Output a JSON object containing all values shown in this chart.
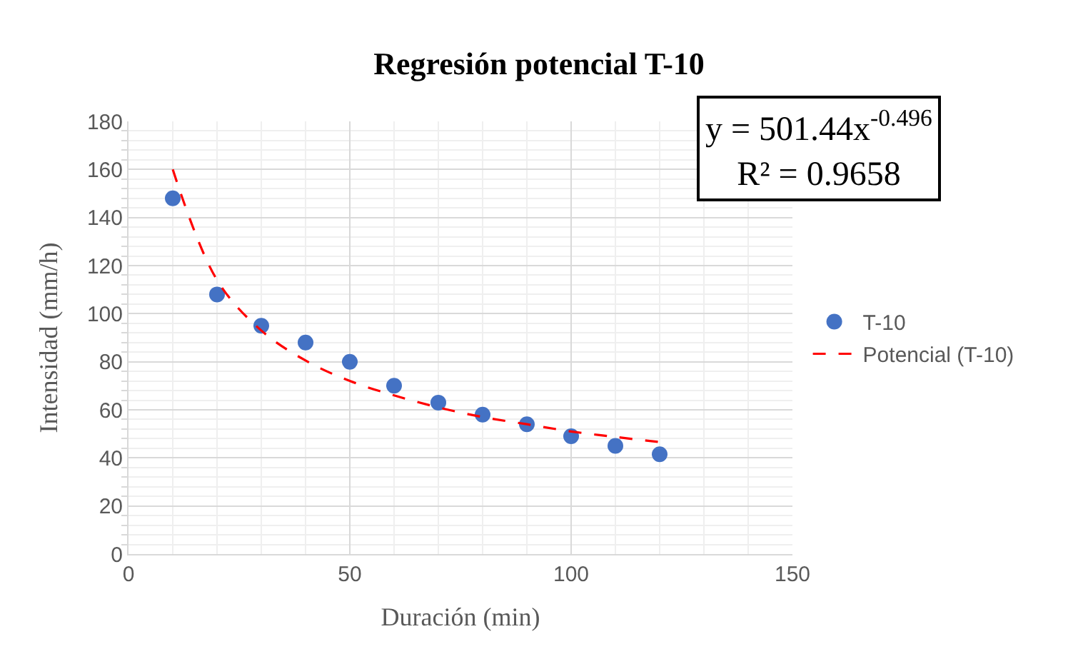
{
  "chart_data": {
    "type": "scatter",
    "title": "Regresión potencial T-10",
    "xlabel": "Duración (min)",
    "ylabel": "Intensidad (mm/h)",
    "x": [
      10,
      20,
      30,
      40,
      50,
      60,
      70,
      80,
      90,
      100,
      110,
      120
    ],
    "series": [
      {
        "name": "T-10",
        "color": "#4472c4",
        "marker": "circle",
        "values": [
          148,
          108,
          95,
          88,
          80,
          70,
          63,
          58,
          54,
          49,
          45,
          41.5
        ]
      },
      {
        "name": "Potencial (T-10)",
        "type": "line",
        "color": "#ff0000",
        "line_style": "dashed",
        "marker": "none",
        "values": [
          160,
          114,
          93,
          80.5,
          72,
          66,
          61,
          57,
          54,
          51,
          48.7,
          46.6
        ]
      }
    ],
    "annotations": [
      "y = 501.44x$^{-0.496}$\nR² = 0.9658"
    ],
    "xlim": [
      0,
      150
    ],
    "xticks": [
      0,
      50,
      100,
      150
    ],
    "ylim": [
      0,
      180
    ],
    "yticks": [
      0,
      20,
      40,
      60,
      80,
      100,
      120,
      140,
      160,
      180
    ],
    "grid": true,
    "legend": "right"
  }
}
